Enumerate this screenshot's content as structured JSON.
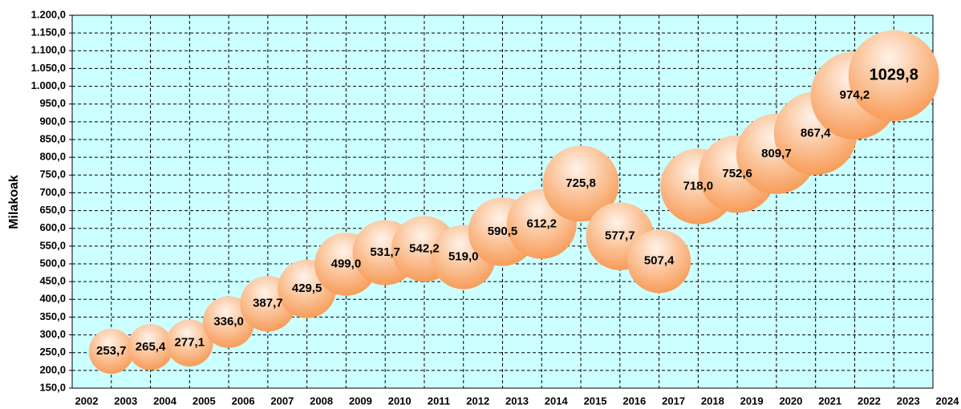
{
  "chart_data": {
    "type": "bubble",
    "y_label": "Milakoak",
    "x": [
      2003,
      2004,
      2005,
      2006,
      2007,
      2008,
      2009,
      2010,
      2011,
      2012,
      2013,
      2014,
      2015,
      2016,
      2017,
      2018,
      2019,
      2020,
      2021,
      2022,
      2023
    ],
    "values": [
      253.7,
      265.4,
      277.1,
      336.0,
      387.7,
      429.5,
      499.0,
      531.7,
      542.2,
      519.0,
      590.5,
      612.2,
      725.8,
      577.7,
      507.4,
      718.0,
      752.6,
      809.7,
      867.4,
      974.2,
      1029.8
    ],
    "value_labels": [
      "253,7",
      "265,4",
      "277,1",
      "336,0",
      "387,7",
      "429,5",
      "499,0",
      "531,7",
      "542,2",
      "519,0",
      "590,5",
      "612,2",
      "725,8",
      "577,7",
      "507,4",
      "718,0",
      "752,6",
      "809,7",
      "867,4",
      "974,2",
      "1029,8"
    ],
    "color": "#f7964f",
    "xlim": [
      2002,
      2024
    ],
    "xticks": [
      2002,
      2003,
      2004,
      2005,
      2006,
      2007,
      2008,
      2009,
      2010,
      2011,
      2012,
      2013,
      2014,
      2015,
      2016,
      2017,
      2018,
      2019,
      2020,
      2021,
      2022,
      2023,
      2024
    ],
    "ylim": [
      150,
      1200
    ],
    "yticks": [
      {
        "value": 150,
        "label": "150,0"
      },
      {
        "value": 200,
        "label": "200,0"
      },
      {
        "value": 250,
        "label": "250,0"
      },
      {
        "value": 300,
        "label": "300,0"
      },
      {
        "value": 350,
        "label": "350,0"
      },
      {
        "value": 400,
        "label": "400,0"
      },
      {
        "value": 450,
        "label": "450,0"
      },
      {
        "value": 500,
        "label": "500,0"
      },
      {
        "value": 550,
        "label": "550,0"
      },
      {
        "value": 600,
        "label": "600,0"
      },
      {
        "value": 650,
        "label": "650,0"
      },
      {
        "value": 700,
        "label": "700,0"
      },
      {
        "value": 750,
        "label": "750,0"
      },
      {
        "value": 800,
        "label": "800,0"
      },
      {
        "value": 850,
        "label": "850,0"
      },
      {
        "value": 900,
        "label": "900,0"
      },
      {
        "value": 950,
        "label": "950,0"
      },
      {
        "value": 1000,
        "label": "1.000,0"
      },
      {
        "value": 1050,
        "label": "1.050,0"
      },
      {
        "value": 1100,
        "label": "1.100,0"
      },
      {
        "value": 1150,
        "label": "1.150,0"
      },
      {
        "value": 1200,
        "label": "1.200,0"
      }
    ],
    "grid": true,
    "plot_background": "#ccffff"
  }
}
